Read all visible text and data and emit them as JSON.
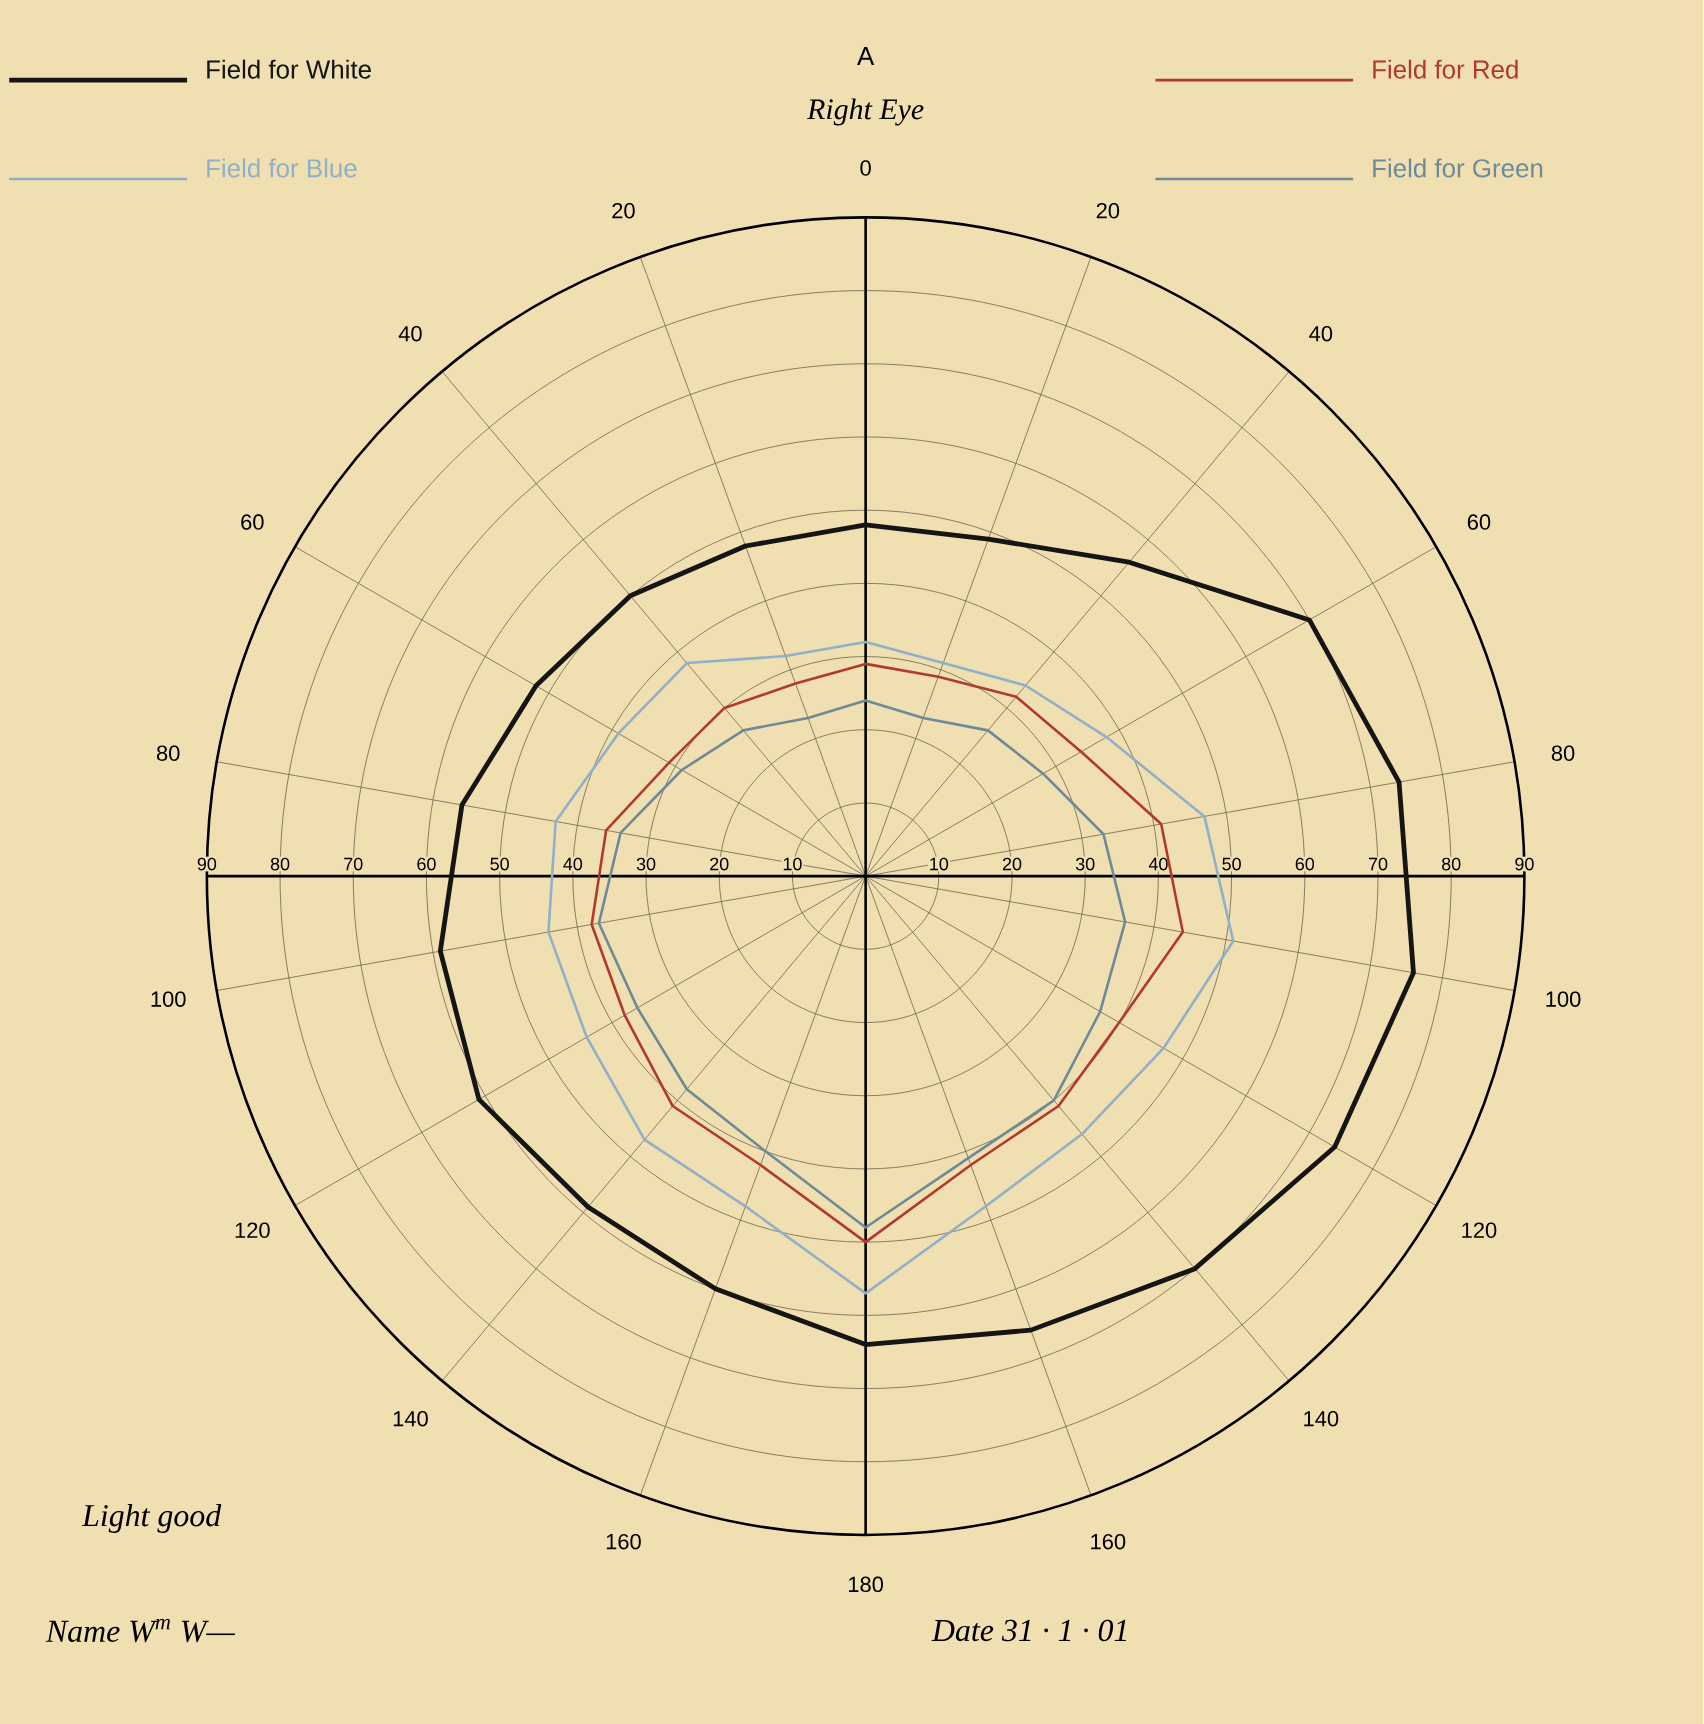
{
  "chart_data": {
    "type": "radar",
    "title": "A",
    "subtitle": "Right Eye",
    "categories": [
      "0",
      "20",
      "40",
      "60",
      "80",
      "100",
      "120",
      "140",
      "160",
      "180",
      "160",
      "140",
      "120",
      "100",
      "80",
      "60",
      "40",
      "20"
    ],
    "ylim": [
      0,
      90
    ],
    "yticks": [
      90,
      80,
      70,
      60,
      50,
      40,
      30,
      20,
      10,
      10,
      20,
      30,
      40,
      50,
      60,
      70,
      80,
      90
    ],
    "grid": true,
    "legend": "top",
    "series": [
      {
        "name": "Field for White",
        "color": "#151515",
        "values": [
          48,
          49,
          56,
          70,
          74,
          76,
          74,
          70,
          66,
          64,
          60,
          59,
          61,
          59,
          56,
          52,
          50,
          48
        ]
      },
      {
        "name": "Field for Red",
        "color": "#b03a2e",
        "values": [
          29,
          29,
          32,
          34,
          41,
          44,
          40,
          41,
          42,
          50,
          42,
          41,
          38,
          38,
          36,
          31,
          30,
          28
        ]
      },
      {
        "name": "Field for Blue",
        "color": "#8fb0c8",
        "values": [
          32,
          31,
          34,
          38,
          47,
          51,
          47,
          46,
          48,
          57,
          48,
          47,
          44,
          44,
          43,
          39,
          38,
          32
        ]
      },
      {
        "name": "Field for Green",
        "color": "#6d8a99",
        "values": [
          24,
          23,
          26,
          28,
          33,
          36,
          37,
          40,
          41,
          48,
          40,
          38,
          36,
          37,
          34,
          29,
          26,
          23
        ]
      }
    ],
    "annotations": [
      "Light good",
      "Name W$^{m}$ W—",
      "Date 31 · 1 · 01"
    ]
  }
}
